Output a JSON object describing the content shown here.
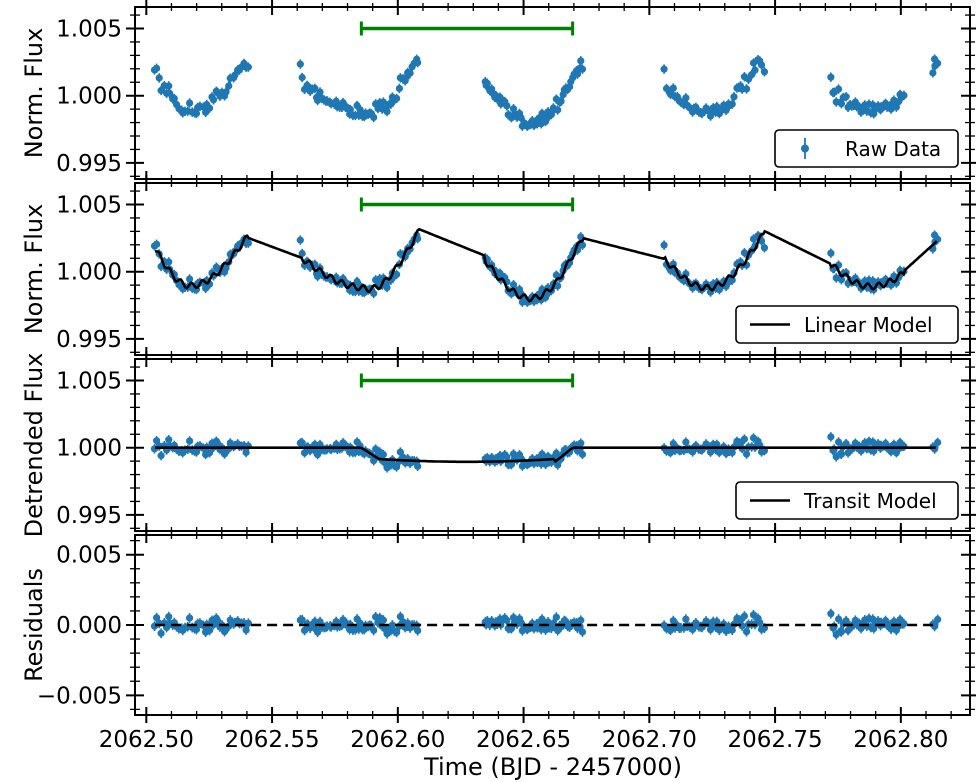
{
  "chart_data": {
    "type": "scatter",
    "xlabel": "Time (BJD - 2457000)",
    "xlim": [
      2062.4955,
      2062.8275
    ],
    "x_ticks": [
      "2062.50",
      "2062.55",
      "2062.60",
      "2062.65",
      "2062.70",
      "2062.75",
      "2062.80"
    ],
    "x_tick_values": [
      2062.5,
      2062.55,
      2062.6,
      2062.65,
      2062.7,
      2062.75,
      2062.8
    ],
    "marker_color": "#1f77b4",
    "line_color": "#000000",
    "bracket_color": "#008000",
    "transit_bracket": [
      2062.5855,
      2062.6695
    ],
    "data_segments": [
      {
        "x0": 2062.5035,
        "x1": 2062.5405,
        "points": 44
      },
      {
        "x0": 2062.5615,
        "x1": 2062.608,
        "points": 62
      },
      {
        "x0": 2062.6345,
        "x1": 2062.6735,
        "points": 60
      },
      {
        "x0": 2062.706,
        "x1": 2062.7455,
        "points": 48
      },
      {
        "x0": 2062.772,
        "x1": 2062.8015,
        "points": 40
      },
      {
        "x0": 2062.8125,
        "x1": 2062.8145,
        "points": 4
      }
    ],
    "panels": [
      {
        "id": "raw",
        "ylabel": "Norm. Flux",
        "ylim": [
          0.9938,
          1.0066
        ],
        "y_ticks": [
          "0.995",
          "1.000",
          "1.005"
        ],
        "y_tick_values": [
          0.995,
          1.0,
          1.005
        ],
        "legend": "Raw Data",
        "legend_kind": "errorbar",
        "line": "none",
        "show_bracket": true
      },
      {
        "id": "linear",
        "ylabel": "Norm. Flux",
        "ylim": [
          0.9938,
          1.0066
        ],
        "y_ticks": [
          "0.995",
          "1.000",
          "1.005"
        ],
        "y_tick_values": [
          0.995,
          1.0,
          1.005
        ],
        "legend": "Linear Model",
        "legend_kind": "line",
        "line": "linear",
        "show_bracket": true
      },
      {
        "id": "detrended",
        "ylabel": "Detrended Flux",
        "ylim": [
          0.9938,
          1.0066
        ],
        "y_ticks": [
          "0.995",
          "1.000",
          "1.005"
        ],
        "y_tick_values": [
          0.995,
          1.0,
          1.005
        ],
        "legend": "Transit Model",
        "legend_kind": "line",
        "line": "transit",
        "show_bracket": true
      },
      {
        "id": "residuals",
        "ylabel": "Residuals",
        "ylim": [
          -0.0064,
          0.0064
        ],
        "y_ticks": [
          "0.005",
          "0.000",
          "−0.005"
        ],
        "y_tick_values": [
          0.005,
          0.0,
          -0.005
        ],
        "legend": "",
        "legend_kind": "none",
        "line": "zero-dashed",
        "show_bracket": false
      }
    ],
    "transit_model": {
      "baseline": 1.0,
      "depth": 0.00105,
      "ingress_start": 2062.5855,
      "ingress_end": 2062.5925,
      "egress_start": 2062.6625,
      "egress_end": 2062.6695
    },
    "trend_model": {
      "segment_peaks": [
        {
          "x": 2062.54,
          "y": 1.00255
        },
        {
          "x": 2062.608,
          "y": 1.0032
        },
        {
          "x": 2062.6735,
          "y": 1.0025
        },
        {
          "x": 2062.746,
          "y": 1.003
        },
        {
          "x": 2062.814,
          "y": 1.0023
        }
      ],
      "segment_starts": [
        {
          "x": 2062.5035,
          "y": 1.0017
        },
        {
          "x": 2062.5615,
          "y": 1.00105
        },
        {
          "x": 2062.6345,
          "y": 1.0012
        },
        {
          "x": 2062.706,
          "y": 1.00095
        },
        {
          "x": 2062.772,
          "y": 1.0006
        }
      ],
      "segment_minima": [
        {
          "x": 2062.5175,
          "y": 0.99895
        },
        {
          "x": 2062.587,
          "y": 0.9988
        },
        {
          "x": 2062.653,
          "y": 0.9983
        },
        {
          "x": 2062.723,
          "y": 0.9988
        },
        {
          "x": 2062.788,
          "y": 0.9989
        }
      ]
    }
  }
}
